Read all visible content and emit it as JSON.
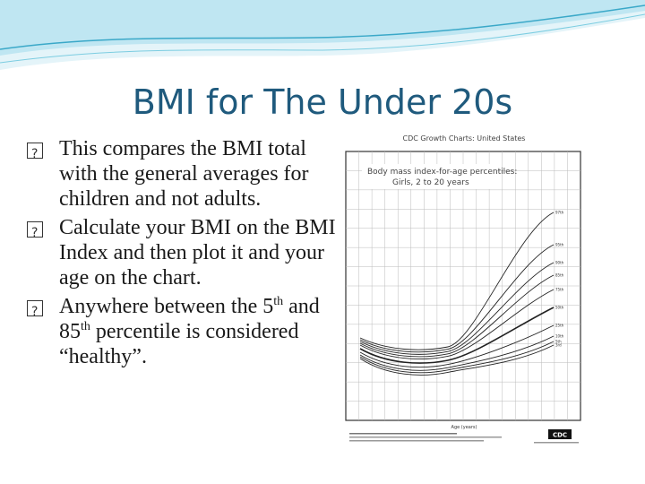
{
  "slide": {
    "title": "BMI for The Under 20s",
    "bullets": [
      {
        "mark": "�",
        "text": "This compares the BMI total with the general averages for children and not adults."
      },
      {
        "mark": "�",
        "text": "Calculate your BMI on the BMI Index and then plot it and your age on the chart."
      },
      {
        "mark": "�",
        "text_before": "Anywhere between the 5",
        "sup1": "th",
        "text_mid": " and 85",
        "sup2": "th",
        "text_after": " percentile is considered “healthy”."
      }
    ]
  },
  "figure": {
    "header": "CDC Growth Charts: United States",
    "chart_title": "Body mass index-for-age percentiles:",
    "chart_subtitle": "Girls, 2 to 20 years",
    "x_axis_label": "Age (years)",
    "footer_logo": "CDC",
    "percentiles": [
      "97th",
      "95th",
      "90th",
      "85th",
      "75th",
      "50th",
      "25th",
      "10th",
      "5th",
      "3rd"
    ]
  },
  "colors": {
    "title": "#1f5a7d",
    "wave_light": "#bfe6f2",
    "wave_dark": "#3aa8c8"
  }
}
